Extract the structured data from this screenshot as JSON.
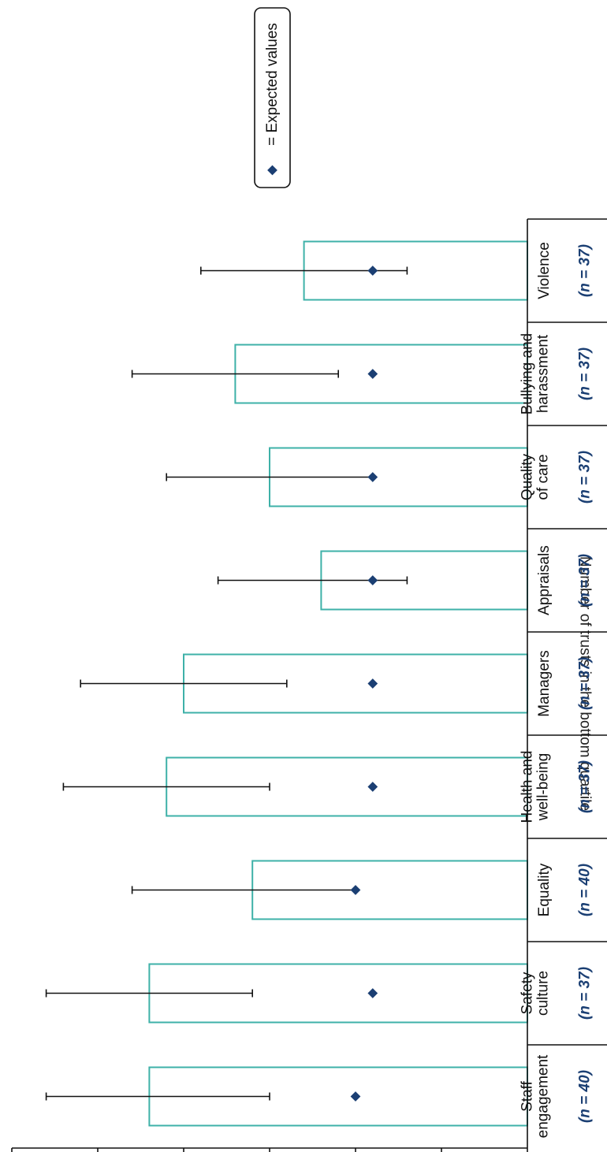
{
  "chart_data": {
    "type": "bar",
    "orientation": "horizontal",
    "ylabel": "Number of trusts in the bottom quartile",
    "ylim": [
      0,
      30
    ],
    "ticks": [
      0,
      5,
      10,
      15,
      20,
      25,
      30
    ],
    "grid": false,
    "legend": {
      "position": "top-right",
      "label": "= Expected values"
    },
    "categories": [
      {
        "lines": [
          "Staff",
          "engagement"
        ],
        "n": "(n = 40)"
      },
      {
        "lines": [
          "Safety",
          "culture"
        ],
        "n": "(n = 37)"
      },
      {
        "lines": [
          "Equality"
        ],
        "n": "(n = 40)"
      },
      {
        "lines": [
          "Health and",
          "well-being"
        ],
        "n": "(n = 37)"
      },
      {
        "lines": [
          "Managers"
        ],
        "n": "(n = 37)"
      },
      {
        "lines": [
          "Appraisals"
        ],
        "n": "(n = 37)"
      },
      {
        "lines": [
          "Quality",
          "of care"
        ],
        "n": "(n = 37)"
      },
      {
        "lines": [
          "Bullying and",
          "harassment"
        ],
        "n": "(n = 37)"
      },
      {
        "lines": [
          "Violence"
        ],
        "n": "(n = 37)"
      }
    ],
    "values": [
      22,
      22,
      16,
      21,
      20,
      12,
      15,
      17,
      13
    ],
    "expected": [
      10,
      9,
      10,
      9,
      9,
      9,
      9,
      9,
      9
    ],
    "error_low": [
      15,
      16,
      10,
      15,
      14,
      7,
      9,
      11,
      7
    ],
    "error_high": [
      28,
      28,
      23,
      27,
      26,
      18,
      21,
      23,
      19
    ],
    "colors": {
      "bar": "#3eb1a8",
      "expected": "#1b3f73",
      "error": "#111111",
      "axis": "#111111",
      "n_label": "#1b3f73"
    }
  }
}
